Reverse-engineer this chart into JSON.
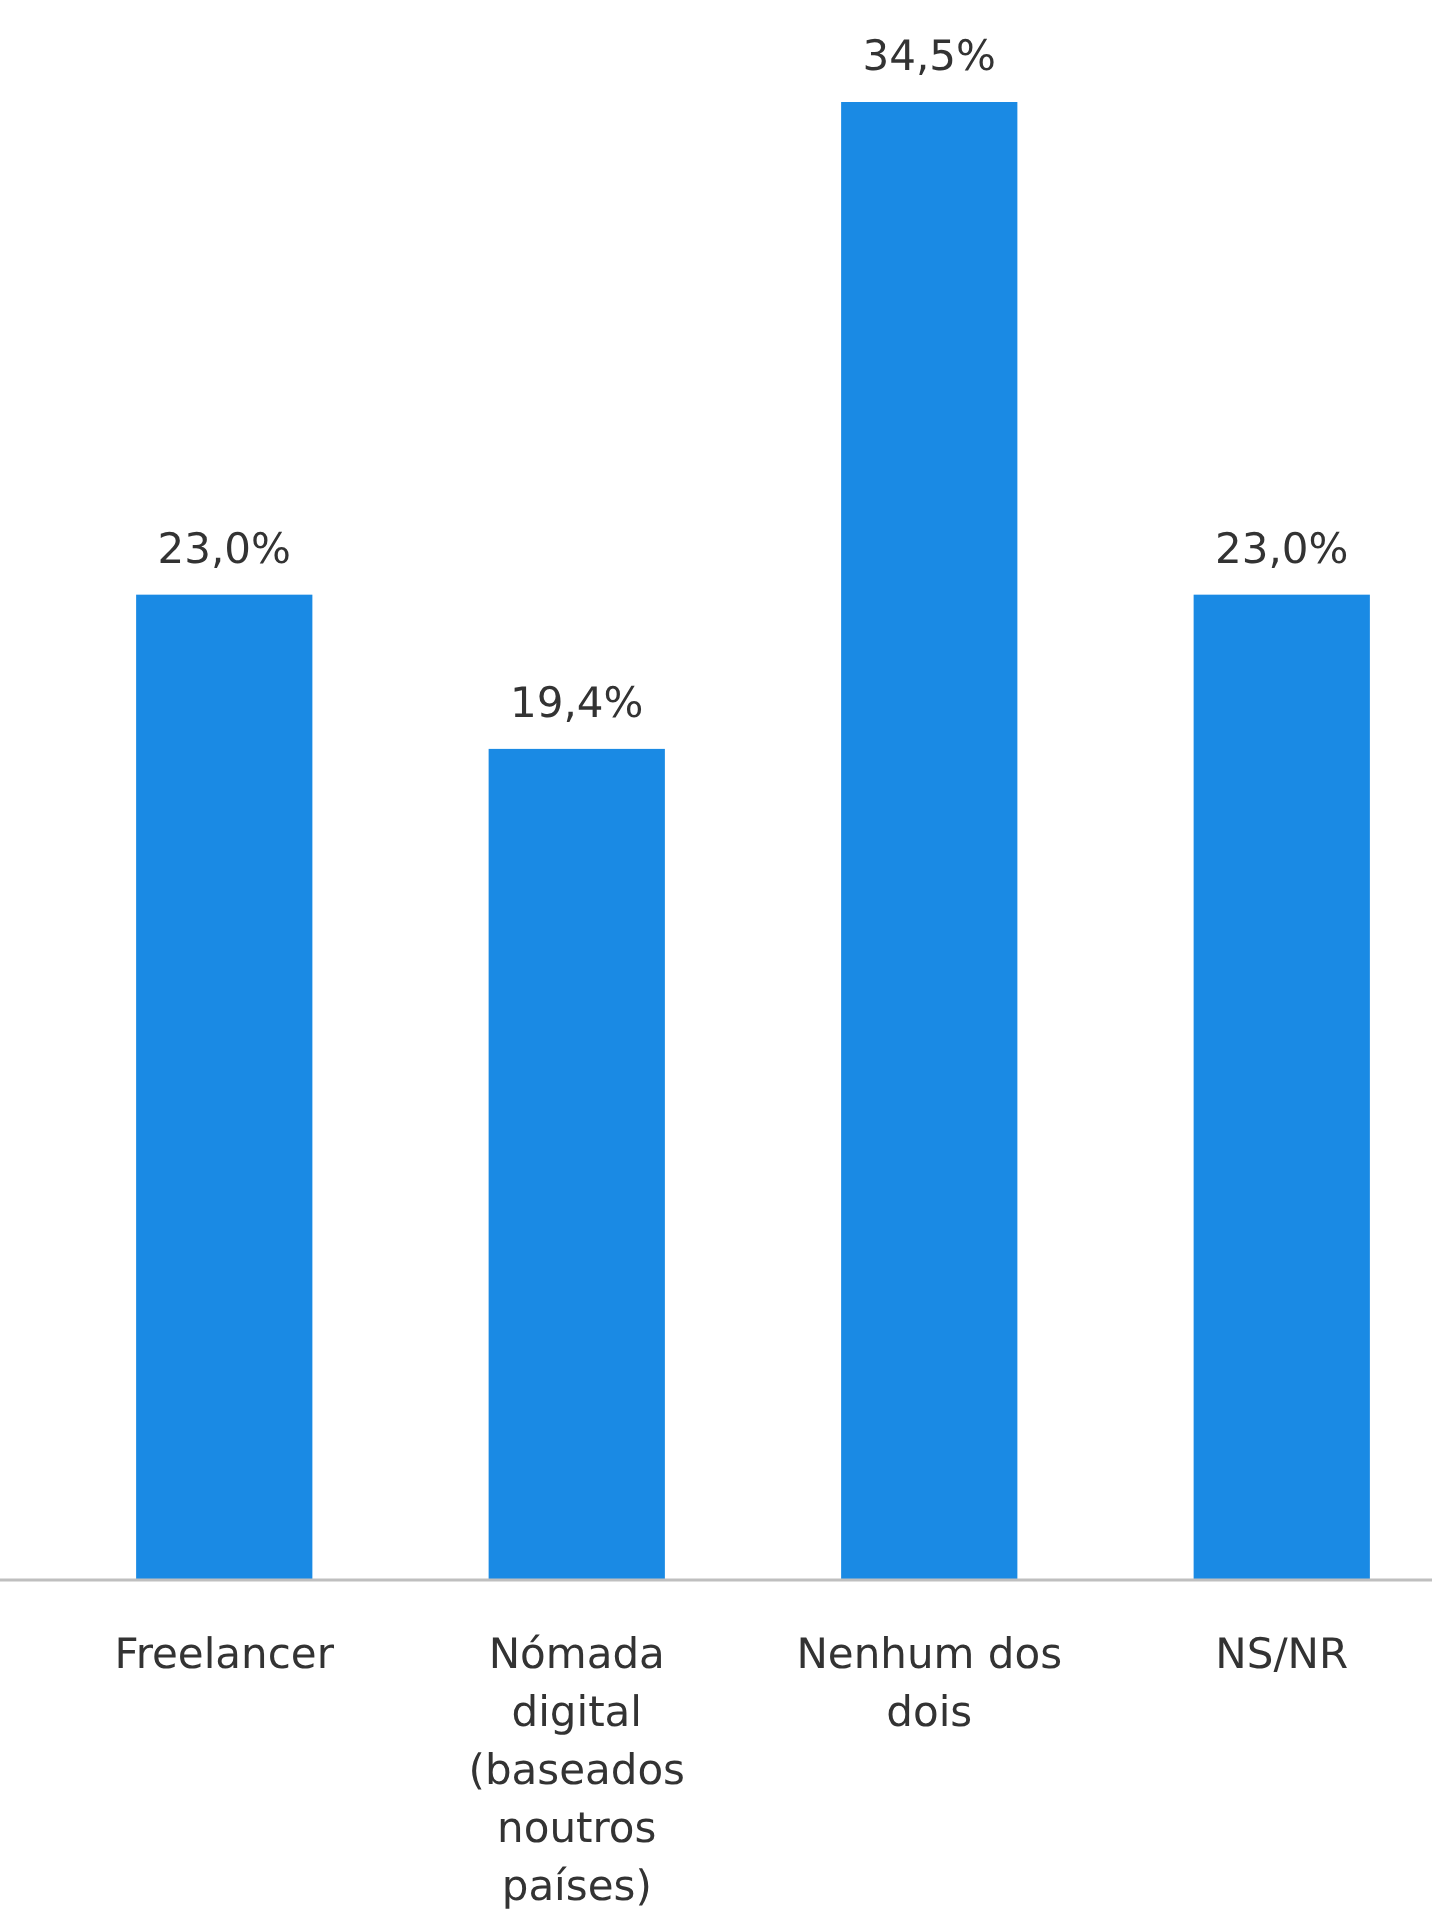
{
  "chart_data": {
    "type": "bar",
    "categories": [
      "Freelancer",
      "Nómada digital (baseados noutros países)",
      "Nenhum dos dois",
      "NS/NR"
    ],
    "values": [
      23.0,
      19.4,
      34.5,
      23.0
    ],
    "value_labels": [
      "23,0%",
      "19,4%",
      "34,5%",
      "23,0%"
    ],
    "color": "#1a8ae4"
  }
}
